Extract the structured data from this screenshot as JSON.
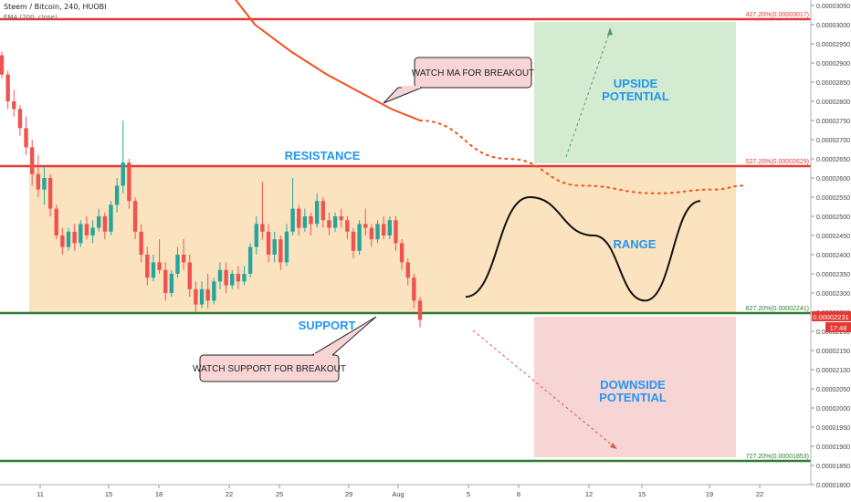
{
  "header": {
    "symbol_line": "Steem / Bitcoin, 240, HUOBI",
    "indicator_line": "EMA (200, close)"
  },
  "chart_data": {
    "type": "candlestick",
    "symbol": "Steem / Bitcoin",
    "interval": "240",
    "exchange": "HUOBI",
    "price_axis": {
      "ylim": [
        1.8e-05,
        3.05e-05
      ],
      "ticks": [
        "0.00003050",
        "0.00003000",
        "0.00002950",
        "0.00002900",
        "0.00002850",
        "0.00002800",
        "0.00002750",
        "0.00002700",
        "0.00002650",
        "0.00002600",
        "0.00002550",
        "0.00002500",
        "0.00002450",
        "0.00002400",
        "0.00002350",
        "0.00002300",
        "0.00002250",
        "0.00002200",
        "0.00002150",
        "0.00002100",
        "0.00002050",
        "0.00002000",
        "0.00001950",
        "0.00001900",
        "0.00001850",
        "0.00001800"
      ]
    },
    "time_axis": {
      "ticks": [
        "11",
        "15",
        "18",
        "22",
        "25",
        "29",
        "Aug",
        "5",
        "8",
        "12",
        "15",
        "19",
        "22"
      ]
    },
    "current_price": {
      "value": "0.00002231",
      "countdown": "17:48",
      "color": "#e53935"
    },
    "fib_levels": [
      {
        "label": "427.20%(0.00003017)",
        "price": 3.017e-05,
        "color": "#e53935"
      },
      {
        "label": "527.20%(0.00002629)",
        "price": 2.629e-05,
        "color": "#e53935"
      },
      {
        "label": "627.20%(0.00002241)",
        "price": 2.241e-05,
        "color": "#2e7d32"
      },
      {
        "label": "727.20%(0.00001853)",
        "price": 1.853e-05,
        "color": "#2e7d32"
      }
    ],
    "zones": [
      {
        "name": "range",
        "color": "#fbe3c0"
      },
      {
        "name": "upside",
        "color": "#d3ecd1"
      },
      {
        "name": "downside",
        "color": "#f8d5d5"
      }
    ],
    "annotations": {
      "resistance": "RESISTANCE",
      "support": "SUPPORT",
      "range": "RANGE",
      "upside_line1": "UPSIDE",
      "upside_line2": "POTENTIAL",
      "downside_line1": "DOWNSIDE",
      "downside_line2": "POTENTIAL",
      "watch_ma": "WATCH MA FOR BREAKOUT",
      "watch_support": "WATCH SUPPORT FOR BREAKOUT"
    },
    "candles": [
      [
        2.92e-05,
        2.93e-05,
        2.86e-05,
        2.87e-05
      ],
      [
        2.87e-05,
        2.88e-05,
        2.78e-05,
        2.8e-05
      ],
      [
        2.8e-05,
        2.83e-05,
        2.76e-05,
        2.78e-05
      ],
      [
        2.78e-05,
        2.79e-05,
        2.71e-05,
        2.73e-05
      ],
      [
        2.73e-05,
        2.76e-05,
        2.66e-05,
        2.68e-05
      ],
      [
        2.68e-05,
        2.7e-05,
        2.58e-05,
        2.61e-05
      ],
      [
        2.61e-05,
        2.66e-05,
        2.55e-05,
        2.57e-05
      ],
      [
        2.57e-05,
        2.63e-05,
        2.53e-05,
        2.6e-05
      ],
      [
        2.6e-05,
        2.61e-05,
        2.5e-05,
        2.52e-05
      ],
      [
        2.52e-05,
        2.53e-05,
        2.44e-05,
        2.45e-05
      ],
      [
        2.45e-05,
        2.47e-05,
        2.4e-05,
        2.42e-05
      ],
      [
        2.42e-05,
        2.47e-05,
        2.41e-05,
        2.46e-05
      ],
      [
        2.46e-05,
        2.48e-05,
        2.41e-05,
        2.43e-05
      ],
      [
        2.43e-05,
        2.49e-05,
        2.42e-05,
        2.48e-05
      ],
      [
        2.48e-05,
        2.5e-05,
        2.44e-05,
        2.45e-05
      ],
      [
        2.45e-05,
        2.49e-05,
        2.43e-05,
        2.47e-05
      ],
      [
        2.47e-05,
        2.52e-05,
        2.46e-05,
        2.5e-05
      ],
      [
        2.5e-05,
        2.51e-05,
        2.44e-05,
        2.46e-05
      ],
      [
        2.46e-05,
        2.54e-05,
        2.45e-05,
        2.53e-05
      ],
      [
        2.53e-05,
        2.6e-05,
        2.51e-05,
        2.58e-05
      ],
      [
        2.58e-05,
        2.75e-05,
        2.56e-05,
        2.64e-05
      ],
      [
        2.64e-05,
        2.65e-05,
        2.52e-05,
        2.54e-05
      ],
      [
        2.54e-05,
        2.55e-05,
        2.44e-05,
        2.46e-05
      ],
      [
        2.46e-05,
        2.48e-05,
        2.38e-05,
        2.4e-05
      ],
      [
        2.4e-05,
        2.42e-05,
        2.32e-05,
        2.34e-05
      ],
      [
        2.34e-05,
        2.4e-05,
        2.33e-05,
        2.38e-05
      ],
      [
        2.38e-05,
        2.44e-05,
        2.35e-05,
        2.36e-05
      ],
      [
        2.36e-05,
        2.38e-05,
        2.28e-05,
        2.3e-05
      ],
      [
        2.3e-05,
        2.36e-05,
        2.29e-05,
        2.35e-05
      ],
      [
        2.35e-05,
        2.42e-05,
        2.34e-05,
        2.4e-05
      ],
      [
        2.4e-05,
        2.44e-05,
        2.36e-05,
        2.38e-05
      ],
      [
        2.38e-05,
        2.4e-05,
        2.29e-05,
        2.31e-05
      ],
      [
        2.31e-05,
        2.33e-05,
        2.25e-05,
        2.27e-05
      ],
      [
        2.27e-05,
        2.33e-05,
        2.26e-05,
        2.31e-05
      ],
      [
        2.31e-05,
        2.35e-05,
        2.26e-05,
        2.28e-05
      ],
      [
        2.28e-05,
        2.34e-05,
        2.27e-05,
        2.33e-05
      ],
      [
        2.33e-05,
        2.38e-05,
        2.31e-05,
        2.36e-05
      ],
      [
        2.36e-05,
        2.38e-05,
        2.3e-05,
        2.32e-05
      ],
      [
        2.32e-05,
        2.36e-05,
        2.31e-05,
        2.35e-05
      ],
      [
        2.35e-05,
        2.37e-05,
        2.31e-05,
        2.33e-05
      ],
      [
        2.33e-05,
        2.37e-05,
        2.32e-05,
        2.35e-05
      ],
      [
        2.35e-05,
        2.43e-05,
        2.34e-05,
        2.42e-05
      ],
      [
        2.42e-05,
        2.5e-05,
        2.4e-05,
        2.48e-05
      ],
      [
        2.48e-05,
        2.59e-05,
        2.44e-05,
        2.46e-05
      ],
      [
        2.46e-05,
        2.48e-05,
        2.38e-05,
        2.4e-05
      ],
      [
        2.4e-05,
        2.46e-05,
        2.38e-05,
        2.44e-05
      ],
      [
        2.44e-05,
        2.45e-05,
        2.36e-05,
        2.38e-05
      ],
      [
        2.38e-05,
        2.48e-05,
        2.37e-05,
        2.46e-05
      ],
      [
        2.46e-05,
        2.6e-05,
        2.45e-05,
        2.52e-05
      ],
      [
        2.52e-05,
        2.53e-05,
        2.45e-05,
        2.47e-05
      ],
      [
        2.47e-05,
        2.52e-05,
        2.46e-05,
        2.5e-05
      ],
      [
        2.5e-05,
        2.51e-05,
        2.45e-05,
        2.48e-05
      ],
      [
        2.48e-05,
        2.56e-05,
        2.47e-05,
        2.54e-05
      ],
      [
        2.54e-05,
        2.55e-05,
        2.47e-05,
        2.49e-05
      ],
      [
        2.49e-05,
        2.51e-05,
        2.45e-05,
        2.47e-05
      ],
      [
        2.47e-05,
        2.51e-05,
        2.46e-05,
        2.5e-05
      ],
      [
        2.5e-05,
        2.52e-05,
        2.47e-05,
        2.49e-05
      ],
      [
        2.49e-05,
        2.5e-05,
        2.44e-05,
        2.46e-05
      ],
      [
        2.46e-05,
        2.47e-05,
        2.39e-05,
        2.41e-05
      ],
      [
        2.41e-05,
        2.49e-05,
        2.4e-05,
        2.48e-05
      ],
      [
        2.48e-05,
        2.52e-05,
        2.45e-05,
        2.47e-05
      ],
      [
        2.47e-05,
        2.48e-05,
        2.42e-05,
        2.44e-05
      ],
      [
        2.44e-05,
        2.49e-05,
        2.43e-05,
        2.48e-05
      ],
      [
        2.48e-05,
        2.5e-05,
        2.44e-05,
        2.45e-05
      ],
      [
        2.45e-05,
        2.5e-05,
        2.44e-05,
        2.49e-05
      ],
      [
        2.49e-05,
        2.5e-05,
        2.41e-05,
        2.43e-05
      ],
      [
        2.43e-05,
        2.44e-05,
        2.36e-05,
        2.38e-05
      ],
      [
        2.38e-05,
        2.39e-05,
        2.32e-05,
        2.34e-05
      ],
      [
        2.34e-05,
        2.35e-05,
        2.26e-05,
        2.28e-05
      ],
      [
        2.28e-05,
        2.29e-05,
        2.21e-05,
        2.23e-05
      ]
    ],
    "ema_200": [
      [
        0,
        3.12e-05
      ],
      [
        5,
        3e-05
      ],
      [
        10,
        2.93e-05
      ],
      [
        15,
        2.87e-05
      ],
      [
        20,
        2.82e-05
      ],
      [
        24,
        2.78e-05
      ],
      [
        28,
        2.75e-05
      ]
    ],
    "ema_projection": [
      [
        28,
        2.75e-05
      ],
      [
        40,
        2.65e-05
      ],
      [
        50,
        2.58e-05
      ],
      [
        60,
        2.56e-05
      ],
      [
        68,
        2.57e-05
      ],
      [
        72,
        2.58e-05
      ]
    ],
    "range_projection": [
      [
        0,
        2.29e-05
      ],
      [
        15,
        2.55e-05
      ],
      [
        30,
        2.45e-05
      ],
      [
        42,
        2.28e-05
      ],
      [
        55,
        2.54e-05
      ]
    ]
  }
}
